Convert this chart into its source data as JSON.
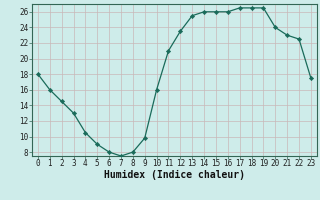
{
  "x": [
    0,
    1,
    2,
    3,
    4,
    5,
    6,
    7,
    8,
    9,
    10,
    11,
    12,
    13,
    14,
    15,
    16,
    17,
    18,
    19,
    20,
    21,
    22,
    23
  ],
  "y": [
    18,
    16,
    14.5,
    13,
    10.5,
    9,
    8,
    7.5,
    8,
    9.8,
    16,
    21,
    23.5,
    25.5,
    26,
    26,
    26,
    26.5,
    26.5,
    26.5,
    24,
    23,
    22.5,
    17.5
  ],
  "line_color": "#1a6b5a",
  "marker": "D",
  "marker_size": 2.2,
  "bg_color": "#ceecea",
  "grid_color": "#c9b8b8",
  "xlabel": "Humidex (Indice chaleur)",
  "ylim": [
    7.5,
    27
  ],
  "xlim": [
    -0.5,
    23.5
  ],
  "yticks": [
    8,
    10,
    12,
    14,
    16,
    18,
    20,
    22,
    24,
    26
  ],
  "xticks": [
    0,
    1,
    2,
    3,
    4,
    5,
    6,
    7,
    8,
    9,
    10,
    11,
    12,
    13,
    14,
    15,
    16,
    17,
    18,
    19,
    20,
    21,
    22,
    23
  ],
  "tick_fontsize": 5.5,
  "xlabel_fontsize": 7,
  "spine_color": "#336655"
}
